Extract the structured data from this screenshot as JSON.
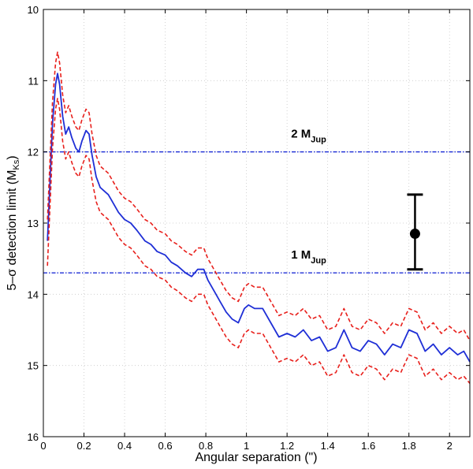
{
  "chart_data": {
    "type": "line",
    "title": "",
    "xlabel": "Angular separation (\")",
    "ylabel_prefix": "5–σ detection limit (M",
    "ylabel_sub": "Ks",
    "ylabel_suffix": ")",
    "xlim": [
      0,
      2.1
    ],
    "ylim": [
      10,
      16
    ],
    "y_inverted": true,
    "grid": true,
    "x_ticks": [
      0,
      0.2,
      0.4,
      0.6,
      0.8,
      1,
      1.2,
      1.4,
      1.6,
      1.8,
      2
    ],
    "x_tick_labels": [
      "0",
      "0.2",
      "0.4",
      "0.6",
      "0.8",
      "1",
      "1.2",
      "1.4",
      "1.6",
      "1.8",
      "2"
    ],
    "y_ticks": [
      10,
      11,
      12,
      13,
      14,
      15,
      16
    ],
    "y_tick_labels": [
      "10",
      "11",
      "12",
      "13",
      "14",
      "15",
      "16"
    ],
    "series": [
      {
        "name": "detection-limit",
        "style": "solid",
        "color": "#1f2fd6",
        "x": [
          0.02,
          0.03,
          0.045,
          0.06,
          0.07,
          0.08,
          0.095,
          0.11,
          0.125,
          0.14,
          0.16,
          0.175,
          0.19,
          0.21,
          0.225,
          0.24,
          0.26,
          0.28,
          0.3,
          0.32,
          0.34,
          0.37,
          0.4,
          0.43,
          0.46,
          0.5,
          0.53,
          0.56,
          0.6,
          0.63,
          0.66,
          0.7,
          0.73,
          0.76,
          0.79,
          0.81,
          0.84,
          0.87,
          0.9,
          0.93,
          0.96,
          0.99,
          1.01,
          1.04,
          1.08,
          1.12,
          1.16,
          1.2,
          1.24,
          1.28,
          1.32,
          1.36,
          1.4,
          1.44,
          1.48,
          1.52,
          1.56,
          1.6,
          1.64,
          1.68,
          1.72,
          1.76,
          1.8,
          1.84,
          1.88,
          1.92,
          1.96,
          2.0,
          2.04,
          2.07,
          2.1
        ],
        "y": [
          13.25,
          12.6,
          11.6,
          11.05,
          10.9,
          11.05,
          11.5,
          11.75,
          11.65,
          11.8,
          11.95,
          12.0,
          11.85,
          11.7,
          11.75,
          12.05,
          12.35,
          12.5,
          12.55,
          12.6,
          12.7,
          12.85,
          12.95,
          13.0,
          13.1,
          13.25,
          13.3,
          13.4,
          13.45,
          13.55,
          13.6,
          13.7,
          13.75,
          13.65,
          13.65,
          13.8,
          13.95,
          14.1,
          14.25,
          14.35,
          14.4,
          14.2,
          14.15,
          14.2,
          14.2,
          14.4,
          14.6,
          14.55,
          14.6,
          14.5,
          14.65,
          14.6,
          14.8,
          14.75,
          14.5,
          14.75,
          14.8,
          14.65,
          14.7,
          14.85,
          14.7,
          14.75,
          14.5,
          14.55,
          14.8,
          14.7,
          14.85,
          14.75,
          14.85,
          14.8,
          14.95
        ]
      },
      {
        "name": "upper-bound",
        "style": "dashed",
        "color": "#e8201c",
        "x": [
          0.02,
          0.03,
          0.045,
          0.06,
          0.07,
          0.08,
          0.095,
          0.11,
          0.125,
          0.14,
          0.16,
          0.175,
          0.19,
          0.21,
          0.225,
          0.24,
          0.26,
          0.28,
          0.3,
          0.32,
          0.34,
          0.37,
          0.4,
          0.43,
          0.46,
          0.5,
          0.53,
          0.56,
          0.6,
          0.63,
          0.66,
          0.7,
          0.73,
          0.76,
          0.79,
          0.81,
          0.84,
          0.87,
          0.9,
          0.93,
          0.96,
          0.99,
          1.01,
          1.04,
          1.08,
          1.12,
          1.16,
          1.2,
          1.24,
          1.28,
          1.32,
          1.36,
          1.4,
          1.44,
          1.48,
          1.52,
          1.56,
          1.6,
          1.64,
          1.68,
          1.72,
          1.76,
          1.8,
          1.84,
          1.88,
          1.92,
          1.96,
          2.0,
          2.04,
          2.07,
          2.1
        ],
        "y": [
          12.95,
          12.3,
          11.3,
          10.75,
          10.6,
          10.75,
          11.2,
          11.45,
          11.35,
          11.5,
          11.65,
          11.7,
          11.55,
          11.4,
          11.45,
          11.75,
          12.05,
          12.2,
          12.25,
          12.3,
          12.4,
          12.55,
          12.65,
          12.7,
          12.8,
          12.95,
          13.0,
          13.1,
          13.15,
          13.25,
          13.3,
          13.4,
          13.45,
          13.35,
          13.35,
          13.5,
          13.65,
          13.8,
          13.95,
          14.05,
          14.1,
          13.9,
          13.85,
          13.9,
          13.9,
          14.1,
          14.3,
          14.25,
          14.3,
          14.2,
          14.35,
          14.3,
          14.5,
          14.45,
          14.2,
          14.45,
          14.5,
          14.35,
          14.4,
          14.55,
          14.4,
          14.45,
          14.2,
          14.25,
          14.5,
          14.4,
          14.55,
          14.45,
          14.55,
          14.5,
          14.65
        ]
      },
      {
        "name": "lower-bound",
        "style": "dashed",
        "color": "#e8201c",
        "x": [
          0.02,
          0.03,
          0.045,
          0.06,
          0.07,
          0.08,
          0.095,
          0.11,
          0.125,
          0.14,
          0.16,
          0.175,
          0.19,
          0.21,
          0.225,
          0.24,
          0.26,
          0.28,
          0.3,
          0.32,
          0.34,
          0.37,
          0.4,
          0.43,
          0.46,
          0.5,
          0.53,
          0.56,
          0.6,
          0.63,
          0.66,
          0.7,
          0.73,
          0.76,
          0.79,
          0.81,
          0.84,
          0.87,
          0.9,
          0.93,
          0.96,
          0.99,
          1.01,
          1.04,
          1.08,
          1.12,
          1.16,
          1.2,
          1.24,
          1.28,
          1.32,
          1.36,
          1.4,
          1.44,
          1.48,
          1.52,
          1.56,
          1.6,
          1.64,
          1.68,
          1.72,
          1.76,
          1.8,
          1.84,
          1.88,
          1.92,
          1.96,
          2.0,
          2.04,
          2.07,
          2.1
        ],
        "y": [
          13.6,
          12.95,
          11.95,
          11.4,
          11.25,
          11.4,
          11.85,
          12.1,
          12.0,
          12.15,
          12.3,
          12.35,
          12.2,
          12.05,
          12.1,
          12.4,
          12.7,
          12.85,
          12.9,
          12.95,
          13.05,
          13.2,
          13.3,
          13.35,
          13.45,
          13.6,
          13.65,
          13.75,
          13.8,
          13.9,
          13.95,
          14.05,
          14.1,
          14.0,
          14.0,
          14.15,
          14.3,
          14.45,
          14.6,
          14.7,
          14.75,
          14.55,
          14.5,
          14.55,
          14.55,
          14.75,
          14.95,
          14.9,
          14.95,
          14.85,
          15.0,
          14.95,
          15.15,
          15.1,
          14.85,
          15.1,
          15.15,
          15.0,
          15.05,
          15.2,
          15.05,
          15.1,
          14.85,
          14.9,
          15.15,
          15.05,
          15.2,
          15.1,
          15.2,
          15.15,
          15.25
        ]
      }
    ],
    "hlines": [
      {
        "name": "2-mjup-line",
        "y": 12.0,
        "label_main": "2 M",
        "label_sub": "Jup",
        "label_x": 1.22,
        "label_y": 11.8,
        "color": "#1f2fd6"
      },
      {
        "name": "1-mjup-line",
        "y": 13.7,
        "label_main": "1 M",
        "label_sub": "Jup",
        "label_x": 1.22,
        "label_y": 13.5,
        "color": "#1f2fd6"
      }
    ],
    "errorbar": {
      "x": 1.83,
      "y": 13.15,
      "ylow": 12.6,
      "yhigh": 13.65,
      "color": "#000000"
    }
  }
}
